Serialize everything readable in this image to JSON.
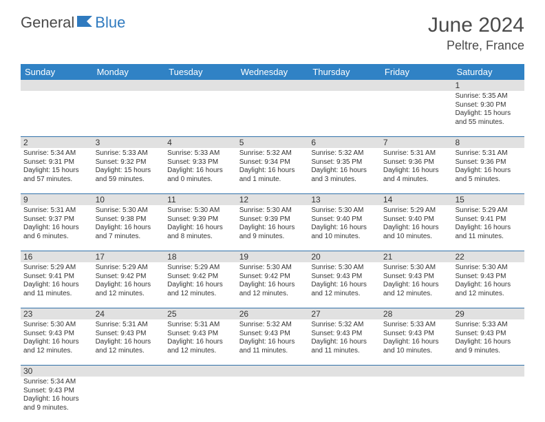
{
  "brand": {
    "part1": "General",
    "part2": "Blue"
  },
  "title": "June 2024",
  "location": "Peltre, France",
  "colors": {
    "header_bg": "#3082c5",
    "header_text": "#ffffff",
    "daynum_bg": "#e1e1e1",
    "border": "#2f6fa8",
    "text": "#333333",
    "brand_gray": "#4a4a4a",
    "brand_blue": "#2f7abf"
  },
  "day_headers": [
    "Sunday",
    "Monday",
    "Tuesday",
    "Wednesday",
    "Thursday",
    "Friday",
    "Saturday"
  ],
  "weeks": [
    [
      {
        "n": "",
        "l": []
      },
      {
        "n": "",
        "l": []
      },
      {
        "n": "",
        "l": []
      },
      {
        "n": "",
        "l": []
      },
      {
        "n": "",
        "l": []
      },
      {
        "n": "",
        "l": []
      },
      {
        "n": "1",
        "l": [
          "Sunrise: 5:35 AM",
          "Sunset: 9:30 PM",
          "Daylight: 15 hours",
          "and 55 minutes."
        ]
      }
    ],
    [
      {
        "n": "2",
        "l": [
          "Sunrise: 5:34 AM",
          "Sunset: 9:31 PM",
          "Daylight: 15 hours",
          "and 57 minutes."
        ]
      },
      {
        "n": "3",
        "l": [
          "Sunrise: 5:33 AM",
          "Sunset: 9:32 PM",
          "Daylight: 15 hours",
          "and 59 minutes."
        ]
      },
      {
        "n": "4",
        "l": [
          "Sunrise: 5:33 AM",
          "Sunset: 9:33 PM",
          "Daylight: 16 hours",
          "and 0 minutes."
        ]
      },
      {
        "n": "5",
        "l": [
          "Sunrise: 5:32 AM",
          "Sunset: 9:34 PM",
          "Daylight: 16 hours",
          "and 1 minute."
        ]
      },
      {
        "n": "6",
        "l": [
          "Sunrise: 5:32 AM",
          "Sunset: 9:35 PM",
          "Daylight: 16 hours",
          "and 3 minutes."
        ]
      },
      {
        "n": "7",
        "l": [
          "Sunrise: 5:31 AM",
          "Sunset: 9:36 PM",
          "Daylight: 16 hours",
          "and 4 minutes."
        ]
      },
      {
        "n": "8",
        "l": [
          "Sunrise: 5:31 AM",
          "Sunset: 9:36 PM",
          "Daylight: 16 hours",
          "and 5 minutes."
        ]
      }
    ],
    [
      {
        "n": "9",
        "l": [
          "Sunrise: 5:31 AM",
          "Sunset: 9:37 PM",
          "Daylight: 16 hours",
          "and 6 minutes."
        ]
      },
      {
        "n": "10",
        "l": [
          "Sunrise: 5:30 AM",
          "Sunset: 9:38 PM",
          "Daylight: 16 hours",
          "and 7 minutes."
        ]
      },
      {
        "n": "11",
        "l": [
          "Sunrise: 5:30 AM",
          "Sunset: 9:39 PM",
          "Daylight: 16 hours",
          "and 8 minutes."
        ]
      },
      {
        "n": "12",
        "l": [
          "Sunrise: 5:30 AM",
          "Sunset: 9:39 PM",
          "Daylight: 16 hours",
          "and 9 minutes."
        ]
      },
      {
        "n": "13",
        "l": [
          "Sunrise: 5:30 AM",
          "Sunset: 9:40 PM",
          "Daylight: 16 hours",
          "and 10 minutes."
        ]
      },
      {
        "n": "14",
        "l": [
          "Sunrise: 5:29 AM",
          "Sunset: 9:40 PM",
          "Daylight: 16 hours",
          "and 10 minutes."
        ]
      },
      {
        "n": "15",
        "l": [
          "Sunrise: 5:29 AM",
          "Sunset: 9:41 PM",
          "Daylight: 16 hours",
          "and 11 minutes."
        ]
      }
    ],
    [
      {
        "n": "16",
        "l": [
          "Sunrise: 5:29 AM",
          "Sunset: 9:41 PM",
          "Daylight: 16 hours",
          "and 11 minutes."
        ]
      },
      {
        "n": "17",
        "l": [
          "Sunrise: 5:29 AM",
          "Sunset: 9:42 PM",
          "Daylight: 16 hours",
          "and 12 minutes."
        ]
      },
      {
        "n": "18",
        "l": [
          "Sunrise: 5:29 AM",
          "Sunset: 9:42 PM",
          "Daylight: 16 hours",
          "and 12 minutes."
        ]
      },
      {
        "n": "19",
        "l": [
          "Sunrise: 5:30 AM",
          "Sunset: 9:42 PM",
          "Daylight: 16 hours",
          "and 12 minutes."
        ]
      },
      {
        "n": "20",
        "l": [
          "Sunrise: 5:30 AM",
          "Sunset: 9:43 PM",
          "Daylight: 16 hours",
          "and 12 minutes."
        ]
      },
      {
        "n": "21",
        "l": [
          "Sunrise: 5:30 AM",
          "Sunset: 9:43 PM",
          "Daylight: 16 hours",
          "and 12 minutes."
        ]
      },
      {
        "n": "22",
        "l": [
          "Sunrise: 5:30 AM",
          "Sunset: 9:43 PM",
          "Daylight: 16 hours",
          "and 12 minutes."
        ]
      }
    ],
    [
      {
        "n": "23",
        "l": [
          "Sunrise: 5:30 AM",
          "Sunset: 9:43 PM",
          "Daylight: 16 hours",
          "and 12 minutes."
        ]
      },
      {
        "n": "24",
        "l": [
          "Sunrise: 5:31 AM",
          "Sunset: 9:43 PM",
          "Daylight: 16 hours",
          "and 12 minutes."
        ]
      },
      {
        "n": "25",
        "l": [
          "Sunrise: 5:31 AM",
          "Sunset: 9:43 PM",
          "Daylight: 16 hours",
          "and 12 minutes."
        ]
      },
      {
        "n": "26",
        "l": [
          "Sunrise: 5:32 AM",
          "Sunset: 9:43 PM",
          "Daylight: 16 hours",
          "and 11 minutes."
        ]
      },
      {
        "n": "27",
        "l": [
          "Sunrise: 5:32 AM",
          "Sunset: 9:43 PM",
          "Daylight: 16 hours",
          "and 11 minutes."
        ]
      },
      {
        "n": "28",
        "l": [
          "Sunrise: 5:33 AM",
          "Sunset: 9:43 PM",
          "Daylight: 16 hours",
          "and 10 minutes."
        ]
      },
      {
        "n": "29",
        "l": [
          "Sunrise: 5:33 AM",
          "Sunset: 9:43 PM",
          "Daylight: 16 hours",
          "and 9 minutes."
        ]
      }
    ],
    [
      {
        "n": "30",
        "l": [
          "Sunrise: 5:34 AM",
          "Sunset: 9:43 PM",
          "Daylight: 16 hours",
          "and 9 minutes."
        ]
      },
      {
        "n": "",
        "l": []
      },
      {
        "n": "",
        "l": []
      },
      {
        "n": "",
        "l": []
      },
      {
        "n": "",
        "l": []
      },
      {
        "n": "",
        "l": []
      },
      {
        "n": "",
        "l": []
      }
    ]
  ]
}
